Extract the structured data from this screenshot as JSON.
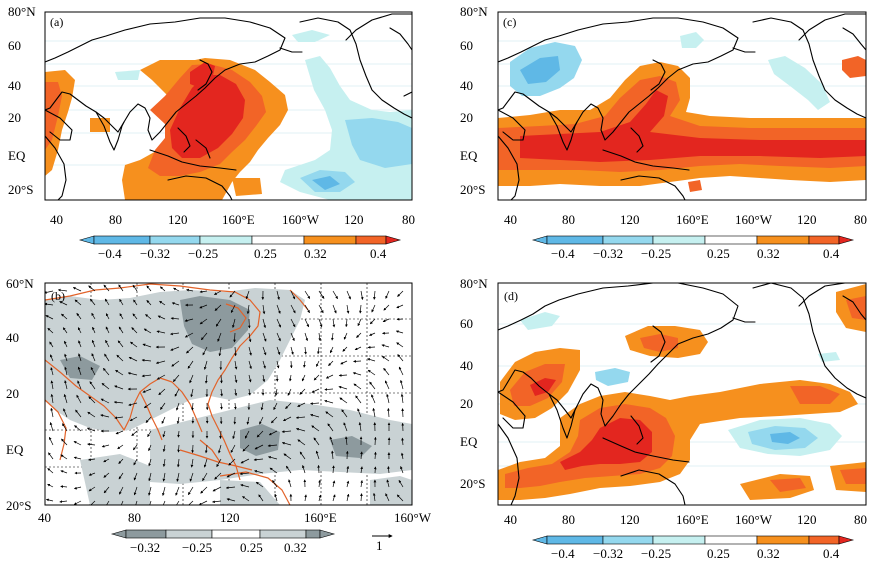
{
  "figure": {
    "panels": [
      {
        "id": "a",
        "label": "(a)"
      },
      {
        "id": "b",
        "label": "(b)"
      },
      {
        "id": "c",
        "label": "(c)"
      },
      {
        "id": "d",
        "label": "(d)"
      }
    ],
    "lat_labels_full": [
      "80°N",
      "60",
      "40",
      "20",
      "EQ",
      "20°S"
    ],
    "lat_labels_b": [
      "60°N",
      "40",
      "20",
      "EQ",
      "20°S"
    ],
    "lon_labels_full": [
      "40",
      "80",
      "120",
      "160°E",
      "160°W",
      "120",
      "80"
    ],
    "lon_labels_b": [
      "40",
      "80",
      "120",
      "160°E",
      "160°W"
    ],
    "colorbar_full": {
      "labels": [
        "−0.4",
        "−0.32",
        "−0.25",
        "0.25",
        "0.32",
        "0.4"
      ],
      "colors": [
        "#5fb8e6",
        "#94d8ee",
        "#c6f0f0",
        "#ffffff",
        "#f6901e",
        "#f26427",
        "#e3261f"
      ]
    },
    "colorbar_b": {
      "labels": [
        "−0.32",
        "−0.25",
        "0.25",
        "0.32"
      ],
      "colors": [
        "#8d9a9e",
        "#c9d2d4",
        "#ffffff",
        "#c9d2d4",
        "#8d9a9e"
      ]
    },
    "vector_ref": {
      "label": "1",
      "arrow": "right-arrow-icon"
    }
  }
}
